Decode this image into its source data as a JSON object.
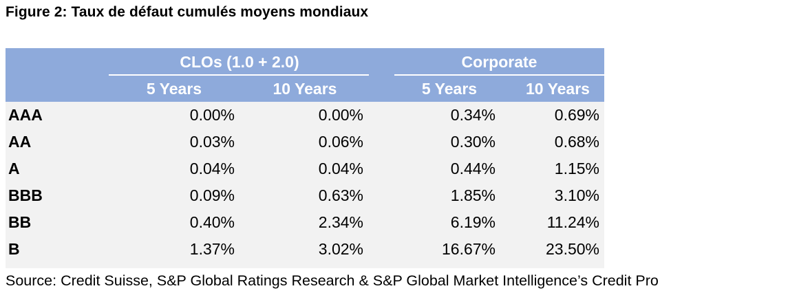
{
  "title": "Figure 2: Taux de défaut cumulés moyens mondiaux",
  "table": {
    "groups": [
      "CLOs (1.0 + 2.0)",
      "Corporate"
    ],
    "columns": [
      "5 Years",
      "10 Years",
      "5 Years",
      "10 Years"
    ],
    "rows": [
      {
        "rating": "AAA",
        "values": [
          "0.00%",
          "0.00%",
          "0.34%",
          "0.69%"
        ]
      },
      {
        "rating": "AA",
        "values": [
          "0.03%",
          "0.06%",
          "0.30%",
          "0.68%"
        ]
      },
      {
        "rating": "A",
        "values": [
          "0.04%",
          "0.04%",
          "0.44%",
          "1.15%"
        ]
      },
      {
        "rating": "BBB",
        "values": [
          "0.09%",
          "0.63%",
          "1.85%",
          "3.10%"
        ]
      },
      {
        "rating": "BB",
        "values": [
          "0.40%",
          "2.34%",
          "6.19%",
          "11.24%"
        ]
      },
      {
        "rating": "B",
        "values": [
          "1.37%",
          "3.02%",
          "16.67%",
          "23.50%"
        ]
      }
    ]
  },
  "source": "Source: Credit Suisse, S&P Global Ratings Research & S&P Global Market Intelligence’s Credit Pro",
  "colors": {
    "header_bg": "#8eaadb",
    "body_bg": "#f2f2f2",
    "header_text": "#ffffff"
  }
}
